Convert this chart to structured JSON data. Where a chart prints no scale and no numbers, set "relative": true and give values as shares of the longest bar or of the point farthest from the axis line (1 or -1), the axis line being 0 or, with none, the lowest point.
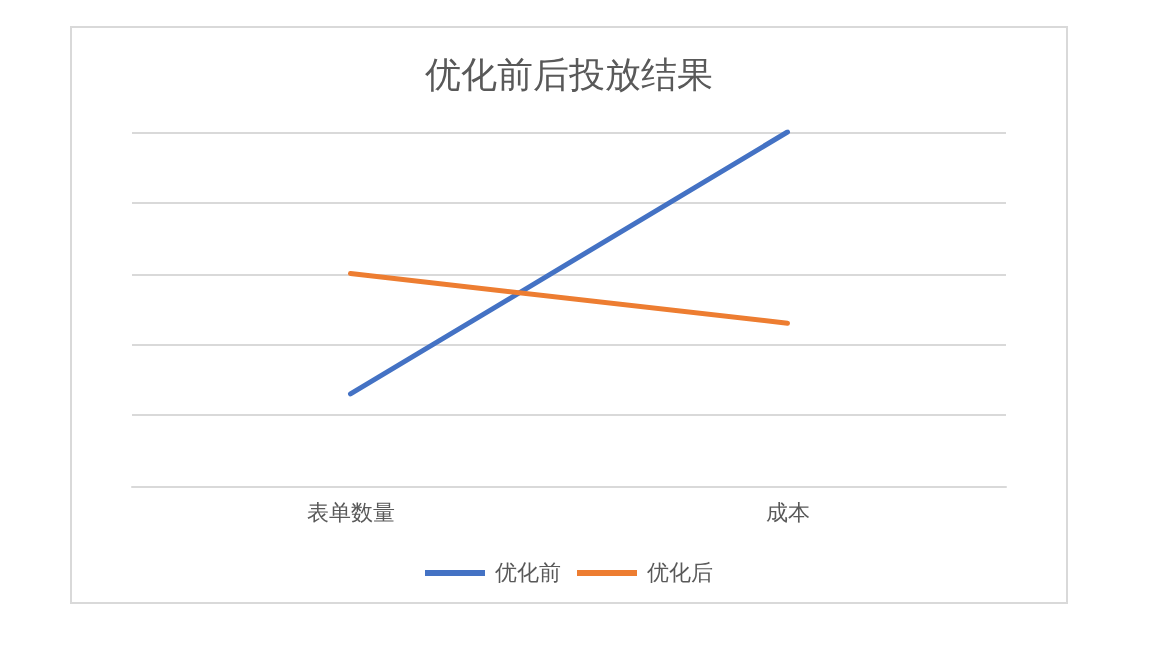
{
  "chart_data": {
    "type": "line",
    "title": "优化前后投放结果",
    "categories": [
      "表单数量",
      "成本"
    ],
    "relative": true,
    "grid": "y",
    "legend": "bottom",
    "marker": "none",
    "series": [
      {
        "name": "优化前",
        "color": "#4472c4",
        "values": [
          0.26,
          1
        ]
      },
      {
        "name": "优化后",
        "color": "#ed7d31",
        "values": [
          0.6,
          0.46
        ]
      }
    ]
  }
}
